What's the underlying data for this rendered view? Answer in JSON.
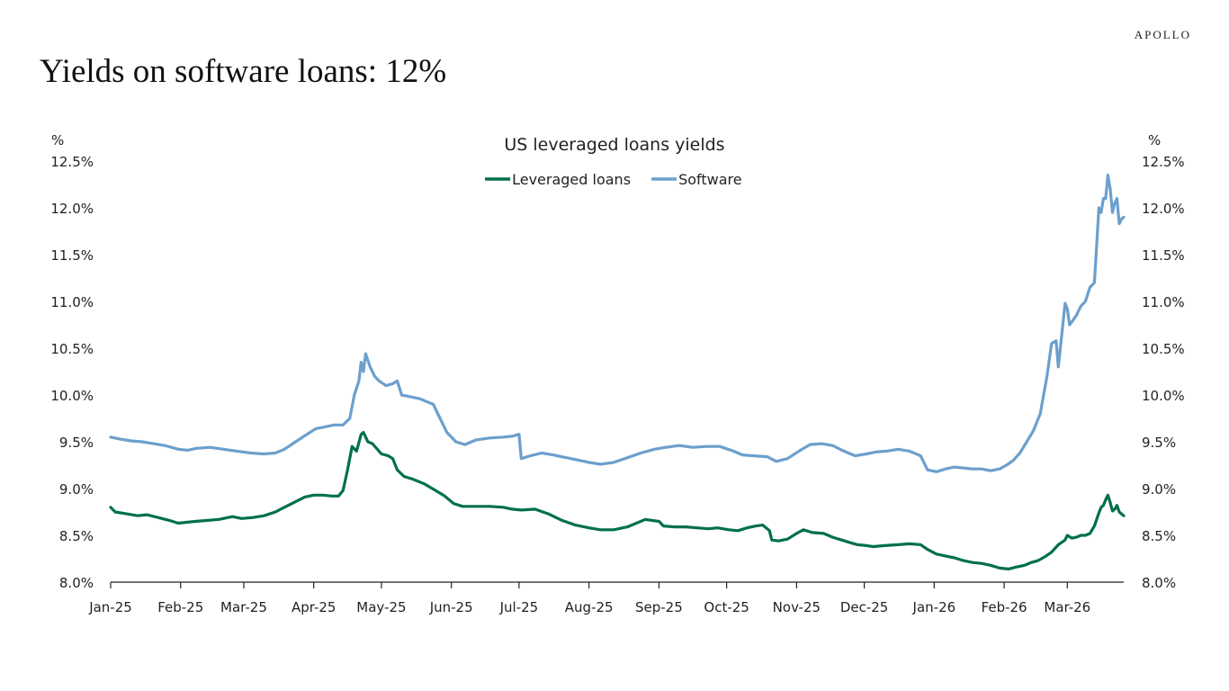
{
  "brand": "APOLLO",
  "headline": "Yields on software loans: 12%",
  "chart_data": {
    "type": "line",
    "title": "US leveraged loans yields",
    "left_axis_unit": "%",
    "right_axis_unit": "%",
    "ylim": [
      8.0,
      12.5
    ],
    "y_ticks": [
      8.0,
      8.5,
      9.0,
      9.5,
      10.0,
      10.5,
      11.0,
      11.5,
      12.0,
      12.5
    ],
    "y_tick_labels": [
      "8.0%",
      "8.5%",
      "9.0%",
      "9.5%",
      "10.0%",
      "10.5%",
      "11.0%",
      "11.5%",
      "12.0%",
      "12.5%"
    ],
    "x_ticks": [
      "2025-01-01",
      "2025-02-01",
      "2025-03-01",
      "2025-04-01",
      "2025-05-01",
      "2025-06-01",
      "2025-07-01",
      "2025-08-01",
      "2025-09-01",
      "2025-10-01",
      "2025-11-01",
      "2025-12-01",
      "2026-01-01",
      "2026-02-01",
      "2026-03-01"
    ],
    "x_tick_labels": [
      "Jan-25",
      "Feb-25",
      "Mar-25",
      "Apr-25",
      "May-25",
      "Jun-25",
      "Jul-25",
      "Aug-25",
      "Sep-25",
      "Oct-25",
      "Nov-25",
      "Dec-25",
      "Jan-26",
      "Feb-26",
      "Mar-26"
    ],
    "xlim": [
      "2025-01-01",
      "2026-03-26"
    ],
    "grid": false,
    "legend_position": "top-center",
    "series": [
      {
        "name": "Leveraged loans",
        "color": "#00704A",
        "points": [
          [
            "2025-01-01",
            8.8
          ],
          [
            "2025-01-03",
            8.75
          ],
          [
            "2025-01-08",
            8.73
          ],
          [
            "2025-01-13",
            8.71
          ],
          [
            "2025-01-17",
            8.72
          ],
          [
            "2025-01-22",
            8.69
          ],
          [
            "2025-01-27",
            8.66
          ],
          [
            "2025-01-31",
            8.63
          ],
          [
            "2025-02-04",
            8.64
          ],
          [
            "2025-02-08",
            8.65
          ],
          [
            "2025-02-13",
            8.66
          ],
          [
            "2025-02-18",
            8.67
          ],
          [
            "2025-02-24",
            8.7
          ],
          [
            "2025-02-28",
            8.68
          ],
          [
            "2025-03-05",
            8.69
          ],
          [
            "2025-03-10",
            8.71
          ],
          [
            "2025-03-15",
            8.75
          ],
          [
            "2025-03-19",
            8.8
          ],
          [
            "2025-03-24",
            8.86
          ],
          [
            "2025-03-28",
            8.91
          ],
          [
            "2025-04-01",
            8.93
          ],
          [
            "2025-04-05",
            8.93
          ],
          [
            "2025-04-09",
            8.92
          ],
          [
            "2025-04-12",
            8.92
          ],
          [
            "2025-04-14",
            8.98
          ],
          [
            "2025-04-16",
            9.2
          ],
          [
            "2025-04-18",
            9.45
          ],
          [
            "2025-04-20",
            9.4
          ],
          [
            "2025-04-22",
            9.58
          ],
          [
            "2025-04-23",
            9.6
          ],
          [
            "2025-04-25",
            9.5
          ],
          [
            "2025-04-27",
            9.48
          ],
          [
            "2025-05-01",
            9.37
          ],
          [
            "2025-05-04",
            9.35
          ],
          [
            "2025-05-06",
            9.32
          ],
          [
            "2025-05-08",
            9.2
          ],
          [
            "2025-05-11",
            9.13
          ],
          [
            "2025-05-15",
            9.1
          ],
          [
            "2025-05-20",
            9.05
          ],
          [
            "2025-05-25",
            8.98
          ],
          [
            "2025-05-29",
            8.92
          ],
          [
            "2025-06-02",
            8.84
          ],
          [
            "2025-06-06",
            8.81
          ],
          [
            "2025-06-12",
            8.81
          ],
          [
            "2025-06-18",
            8.81
          ],
          [
            "2025-06-24",
            8.8
          ],
          [
            "2025-06-28",
            8.78
          ],
          [
            "2025-07-02",
            8.77
          ],
          [
            "2025-07-08",
            8.78
          ],
          [
            "2025-07-14",
            8.73
          ],
          [
            "2025-07-20",
            8.66
          ],
          [
            "2025-07-26",
            8.61
          ],
          [
            "2025-08-01",
            8.58
          ],
          [
            "2025-08-06",
            8.56
          ],
          [
            "2025-08-12",
            8.56
          ],
          [
            "2025-08-18",
            8.59
          ],
          [
            "2025-08-22",
            8.63
          ],
          [
            "2025-08-26",
            8.67
          ],
          [
            "2025-08-29",
            8.66
          ],
          [
            "2025-09-01",
            8.65
          ],
          [
            "2025-09-03",
            8.6
          ],
          [
            "2025-09-08",
            8.59
          ],
          [
            "2025-09-13",
            8.59
          ],
          [
            "2025-09-18",
            8.58
          ],
          [
            "2025-09-23",
            8.57
          ],
          [
            "2025-09-27",
            8.58
          ],
          [
            "2025-10-02",
            8.56
          ],
          [
            "2025-10-06",
            8.55
          ],
          [
            "2025-10-10",
            8.58
          ],
          [
            "2025-10-14",
            8.6
          ],
          [
            "2025-10-17",
            8.61
          ],
          [
            "2025-10-20",
            8.55
          ],
          [
            "2025-10-21",
            8.45
          ],
          [
            "2025-10-24",
            8.44
          ],
          [
            "2025-10-28",
            8.46
          ],
          [
            "2025-11-01",
            8.52
          ],
          [
            "2025-11-04",
            8.56
          ],
          [
            "2025-11-08",
            8.53
          ],
          [
            "2025-11-13",
            8.52
          ],
          [
            "2025-11-17",
            8.48
          ],
          [
            "2025-11-21",
            8.45
          ],
          [
            "2025-11-25",
            8.42
          ],
          [
            "2025-11-28",
            8.4
          ],
          [
            "2025-12-02",
            8.39
          ],
          [
            "2025-12-05",
            8.38
          ],
          [
            "2025-12-10",
            8.39
          ],
          [
            "2025-12-16",
            8.4
          ],
          [
            "2025-12-21",
            8.41
          ],
          [
            "2025-12-26",
            8.4
          ],
          [
            "2025-12-29",
            8.35
          ],
          [
            "2026-01-02",
            8.3
          ],
          [
            "2026-01-06",
            8.28
          ],
          [
            "2026-01-10",
            8.26
          ],
          [
            "2026-01-14",
            8.23
          ],
          [
            "2026-01-18",
            8.21
          ],
          [
            "2026-01-22",
            8.2
          ],
          [
            "2026-01-26",
            8.18
          ],
          [
            "2026-01-30",
            8.15
          ],
          [
            "2026-02-03",
            8.14
          ],
          [
            "2026-02-06",
            8.16
          ],
          [
            "2026-02-10",
            8.18
          ],
          [
            "2026-02-13",
            8.21
          ],
          [
            "2026-02-16",
            8.23
          ],
          [
            "2026-02-19",
            8.27
          ],
          [
            "2026-02-22",
            8.32
          ],
          [
            "2026-02-25",
            8.4
          ],
          [
            "2026-02-28",
            8.45
          ],
          [
            "2026-03-01",
            8.5
          ],
          [
            "2026-03-03",
            8.47
          ],
          [
            "2026-03-05",
            8.48
          ],
          [
            "2026-03-07",
            8.5
          ],
          [
            "2026-03-09",
            8.5
          ],
          [
            "2026-03-11",
            8.52
          ],
          [
            "2026-03-13",
            8.6
          ],
          [
            "2026-03-15",
            8.74
          ],
          [
            "2026-03-16",
            8.8
          ],
          [
            "2026-03-17",
            8.82
          ],
          [
            "2026-03-18",
            8.88
          ],
          [
            "2026-03-19",
            8.93
          ],
          [
            "2026-03-20",
            8.85
          ],
          [
            "2026-03-21",
            8.76
          ],
          [
            "2026-03-22",
            8.78
          ],
          [
            "2026-03-23",
            8.82
          ],
          [
            "2026-03-24",
            8.75
          ],
          [
            "2026-03-25",
            8.73
          ],
          [
            "2026-03-26",
            8.71
          ]
        ]
      },
      {
        "name": "Software",
        "color": "#6C9FCC",
        "points": [
          [
            "2025-01-01",
            9.55
          ],
          [
            "2025-01-05",
            9.53
          ],
          [
            "2025-01-10",
            9.51
          ],
          [
            "2025-01-15",
            9.5
          ],
          [
            "2025-01-20",
            9.48
          ],
          [
            "2025-01-25",
            9.46
          ],
          [
            "2025-01-31",
            9.42
          ],
          [
            "2025-02-04",
            9.41
          ],
          [
            "2025-02-08",
            9.43
          ],
          [
            "2025-02-14",
            9.44
          ],
          [
            "2025-02-20",
            9.42
          ],
          [
            "2025-02-26",
            9.4
          ],
          [
            "2025-03-04",
            9.38
          ],
          [
            "2025-03-10",
            9.37
          ],
          [
            "2025-03-15",
            9.38
          ],
          [
            "2025-03-19",
            9.42
          ],
          [
            "2025-03-24",
            9.5
          ],
          [
            "2025-03-29",
            9.58
          ],
          [
            "2025-04-02",
            9.64
          ],
          [
            "2025-04-06",
            9.66
          ],
          [
            "2025-04-10",
            9.68
          ],
          [
            "2025-04-14",
            9.68
          ],
          [
            "2025-04-17",
            9.75
          ],
          [
            "2025-04-19",
            10.0
          ],
          [
            "2025-04-21",
            10.15
          ],
          [
            "2025-04-22",
            10.35
          ],
          [
            "2025-04-23",
            10.25
          ],
          [
            "2025-04-24",
            10.44
          ],
          [
            "2025-04-26",
            10.3
          ],
          [
            "2025-04-28",
            10.2
          ],
          [
            "2025-04-30",
            10.15
          ],
          [
            "2025-05-03",
            10.1
          ],
          [
            "2025-05-06",
            10.12
          ],
          [
            "2025-05-08",
            10.15
          ],
          [
            "2025-05-10",
            10.0
          ],
          [
            "2025-05-14",
            9.98
          ],
          [
            "2025-05-18",
            9.96
          ],
          [
            "2025-05-21",
            9.93
          ],
          [
            "2025-05-24",
            9.9
          ],
          [
            "2025-05-27",
            9.75
          ],
          [
            "2025-05-30",
            9.6
          ],
          [
            "2025-06-03",
            9.5
          ],
          [
            "2025-06-07",
            9.47
          ],
          [
            "2025-06-12",
            9.52
          ],
          [
            "2025-06-18",
            9.54
          ],
          [
            "2025-06-24",
            9.55
          ],
          [
            "2025-06-28",
            9.56
          ],
          [
            "2025-07-01",
            9.58
          ],
          [
            "2025-07-02",
            9.32
          ],
          [
            "2025-07-06",
            9.35
          ],
          [
            "2025-07-11",
            9.38
          ],
          [
            "2025-07-16",
            9.36
          ],
          [
            "2025-07-22",
            9.33
          ],
          [
            "2025-07-28",
            9.3
          ],
          [
            "2025-08-01",
            9.28
          ],
          [
            "2025-08-06",
            9.26
          ],
          [
            "2025-08-12",
            9.28
          ],
          [
            "2025-08-18",
            9.33
          ],
          [
            "2025-08-24",
            9.38
          ],
          [
            "2025-08-30",
            9.42
          ],
          [
            "2025-09-04",
            9.44
          ],
          [
            "2025-09-10",
            9.46
          ],
          [
            "2025-09-16",
            9.44
          ],
          [
            "2025-09-22",
            9.45
          ],
          [
            "2025-09-28",
            9.45
          ],
          [
            "2025-10-04",
            9.4
          ],
          [
            "2025-10-08",
            9.36
          ],
          [
            "2025-10-13",
            9.35
          ],
          [
            "2025-10-19",
            9.34
          ],
          [
            "2025-10-23",
            9.29
          ],
          [
            "2025-10-28",
            9.32
          ],
          [
            "2025-11-02",
            9.4
          ],
          [
            "2025-11-07",
            9.47
          ],
          [
            "2025-11-12",
            9.48
          ],
          [
            "2025-11-17",
            9.46
          ],
          [
            "2025-11-22",
            9.4
          ],
          [
            "2025-11-27",
            9.35
          ],
          [
            "2025-12-02",
            9.37
          ],
          [
            "2025-12-06",
            9.39
          ],
          [
            "2025-12-11",
            9.4
          ],
          [
            "2025-12-16",
            9.42
          ],
          [
            "2025-12-21",
            9.4
          ],
          [
            "2025-12-26",
            9.35
          ],
          [
            "2025-12-29",
            9.2
          ],
          [
            "2026-01-02",
            9.18
          ],
          [
            "2026-01-06",
            9.21
          ],
          [
            "2026-01-10",
            9.23
          ],
          [
            "2026-01-14",
            9.22
          ],
          [
            "2026-01-18",
            9.21
          ],
          [
            "2026-01-22",
            9.21
          ],
          [
            "2026-01-26",
            9.19
          ],
          [
            "2026-01-30",
            9.21
          ],
          [
            "2026-02-02",
            9.25
          ],
          [
            "2026-02-05",
            9.3
          ],
          [
            "2026-02-08",
            9.38
          ],
          [
            "2026-02-11",
            9.5
          ],
          [
            "2026-02-14",
            9.62
          ],
          [
            "2026-02-17",
            9.8
          ],
          [
            "2026-02-20",
            10.2
          ],
          [
            "2026-02-22",
            10.55
          ],
          [
            "2026-02-24",
            10.58
          ],
          [
            "2026-02-25",
            10.3
          ],
          [
            "2026-02-27",
            10.75
          ],
          [
            "2026-02-28",
            10.98
          ],
          [
            "2026-03-01",
            10.92
          ],
          [
            "2026-03-02",
            10.75
          ],
          [
            "2026-03-03",
            10.78
          ],
          [
            "2026-03-05",
            10.85
          ],
          [
            "2026-03-07",
            10.95
          ],
          [
            "2026-03-09",
            11.0
          ],
          [
            "2026-03-11",
            11.15
          ],
          [
            "2026-03-13",
            11.2
          ],
          [
            "2026-03-14",
            11.6
          ],
          [
            "2026-03-15",
            12.0
          ],
          [
            "2026-03-16",
            11.95
          ],
          [
            "2026-03-17",
            12.1
          ],
          [
            "2026-03-18",
            12.1
          ],
          [
            "2026-03-19",
            12.35
          ],
          [
            "2026-03-20",
            12.2
          ],
          [
            "2026-03-21",
            11.95
          ],
          [
            "2026-03-22",
            12.05
          ],
          [
            "2026-03-23",
            12.1
          ],
          [
            "2026-03-24",
            11.83
          ],
          [
            "2026-03-25",
            11.88
          ],
          [
            "2026-03-26",
            11.9
          ]
        ]
      }
    ]
  }
}
